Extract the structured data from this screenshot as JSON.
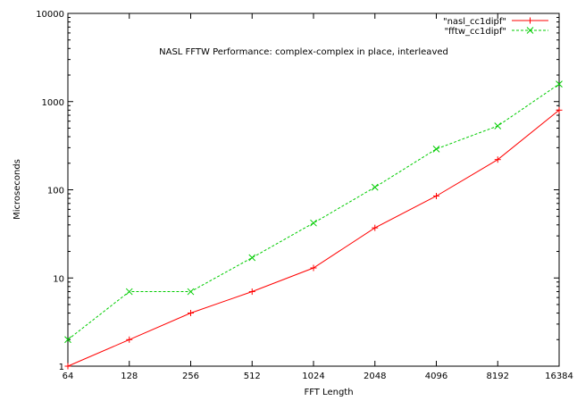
{
  "chart_data": {
    "type": "line",
    "title": "NASL FFTW Performance: complex-complex in place, interleaved",
    "xlabel": "FFT Length",
    "ylabel": "Microseconds",
    "categories": [
      "64",
      "128",
      "256",
      "512",
      "1024",
      "2048",
      "4096",
      "8192",
      "16384"
    ],
    "y_scale": "log",
    "ylim": [
      1,
      10000
    ],
    "y_tick_labels": [
      "1",
      "10",
      "100",
      "1000",
      "10000"
    ],
    "grid": false,
    "legend_position": "top-right",
    "series": [
      {
        "name": "\"nasl_cc1dipf\"",
        "color": "#ff0000",
        "marker": "plus",
        "line_style": "solid",
        "values": [
          1,
          2,
          4,
          7,
          13,
          37,
          85,
          220,
          800
        ]
      },
      {
        "name": "\"fftw_cc1dipf\"",
        "color": "#00cc00",
        "marker": "cross",
        "line_style": "dashed",
        "values": [
          2,
          7,
          7,
          17,
          42,
          107,
          290,
          530,
          1580
        ]
      }
    ]
  }
}
